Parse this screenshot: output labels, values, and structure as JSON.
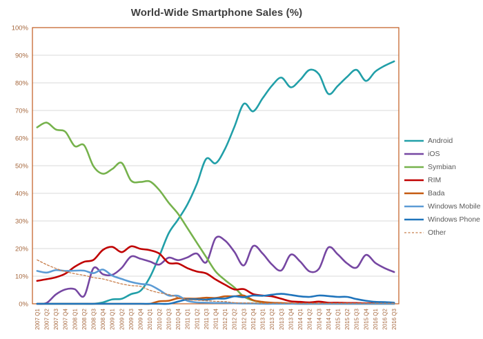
{
  "chart_data": {
    "type": "line",
    "title": "World-Wide Smartphone Sales (%)",
    "smooth": true,
    "grid": "horizontal",
    "legend_position": "right",
    "ylim": [
      0,
      100
    ],
    "y_tick_labels": [
      "0%",
      "10%",
      "20%",
      "30%",
      "40%",
      "50%",
      "60%",
      "70%",
      "80%",
      "90%",
      "100%"
    ],
    "x_categories": [
      "2007 Q1",
      "2007 Q2",
      "2007 Q3",
      "2007 Q4",
      "2008 Q1",
      "2008 Q2",
      "2008 Q3",
      "2008 Q4",
      "2009 Q1",
      "2009 Q2",
      "2009 Q3",
      "2009 Q4",
      "2010 Q1",
      "2010 Q2",
      "2010 Q3",
      "2010 Q4",
      "2011 Q1",
      "2011 Q2",
      "2011 Q3",
      "2011 Q4",
      "2012 Q1",
      "2012 Q2",
      "2012 Q3",
      "2012 Q4",
      "2013 Q1",
      "2013 Q2",
      "2013 Q3",
      "2013 Q4",
      "2014 Q1",
      "2014 Q2",
      "2014 Q3",
      "2014 Q4",
      "2015 Q1",
      "2015 Q2",
      "2015 Q3",
      "2015 Q4",
      "2016 Q1",
      "2016 Q2",
      "2016 Q3"
    ],
    "series": [
      {
        "name": "Android",
        "color": "#219FA8",
        "style": "solid",
        "values": [
          0,
          0,
          0,
          0,
          0,
          0,
          0,
          0.5,
          1.6,
          1.8,
          3.5,
          4.7,
          9.6,
          17.2,
          25.5,
          30.5,
          36.0,
          43.4,
          52.5,
          50.9,
          56.1,
          64.1,
          72.4,
          69.7,
          74.4,
          79.0,
          81.9,
          78.4,
          81.1,
          84.7,
          83.1,
          76.0,
          78.9,
          82.2,
          84.7,
          80.7,
          84.1,
          86.2,
          87.8
        ]
      },
      {
        "name": "iOS",
        "color": "#7647A2",
        "style": "solid",
        "values": [
          0,
          0.3,
          3.4,
          5.2,
          5.3,
          2.8,
          12.9,
          10.7,
          10.5,
          13.0,
          17.1,
          16.3,
          15.3,
          14.2,
          16.7,
          15.8,
          16.8,
          18.2,
          15.0,
          23.8,
          22.9,
          18.8,
          13.9,
          20.9,
          18.2,
          14.2,
          12.1,
          17.8,
          15.3,
          11.7,
          12.7,
          20.4,
          17.9,
          14.6,
          13.1,
          17.7,
          14.8,
          12.9,
          11.5
        ]
      },
      {
        "name": "Symbian",
        "color": "#76B24C",
        "style": "solid",
        "values": [
          63.9,
          65.6,
          63.1,
          62.3,
          57.1,
          57.4,
          49.8,
          47.1,
          48.8,
          51.0,
          44.6,
          44.1,
          44.3,
          41.2,
          36.6,
          32.6,
          27.4,
          22.1,
          16.9,
          11.7,
          8.6,
          5.9,
          2.6,
          1.2,
          0.6,
          0.3,
          0.2,
          0.1,
          0,
          0,
          0,
          0,
          0,
          0,
          0,
          0,
          0,
          0,
          0
        ]
      },
      {
        "name": "RIM",
        "color": "#C00000",
        "style": "solid",
        "values": [
          8.3,
          8.9,
          9.6,
          10.9,
          13.4,
          15.2,
          15.9,
          19.5,
          20.6,
          18.7,
          20.8,
          19.9,
          19.4,
          18.2,
          14.8,
          14.6,
          12.9,
          11.7,
          11.0,
          8.8,
          6.9,
          5.2,
          5.3,
          3.5,
          3.0,
          2.7,
          1.8,
          0.9,
          0.7,
          0.5,
          0.8,
          0.4,
          0.4,
          0.3,
          0.3,
          0.2,
          0.2,
          0.1,
          0.1
        ]
      },
      {
        "name": "Bada",
        "color": "#C55A11",
        "style": "solid",
        "values": [
          0,
          0,
          0,
          0,
          0,
          0,
          0,
          0,
          0,
          0,
          0,
          0,
          0,
          0.9,
          1.1,
          2.0,
          1.9,
          1.9,
          2.2,
          2.1,
          2.7,
          2.7,
          3.0,
          1.3,
          0.7,
          0.4,
          0.3,
          0.1,
          0,
          0,
          0,
          0,
          0,
          0,
          0,
          0,
          0,
          0,
          0
        ]
      },
      {
        "name": "Windows Mobile",
        "color": "#5B9BD5",
        "style": "solid",
        "values": [
          11.9,
          11.3,
          12.2,
          11.9,
          12.0,
          12.0,
          11.1,
          12.4,
          10.2,
          9.0,
          7.9,
          7.2,
          6.8,
          5.0,
          3.0,
          2.9,
          1.1,
          0.5,
          0.4,
          0.3,
          0.3,
          0.2,
          0.1,
          0.1,
          0,
          0,
          0,
          0,
          0,
          0,
          0,
          0,
          0,
          0,
          0,
          0,
          0,
          0,
          0
        ]
      },
      {
        "name": "Windows Phone",
        "color": "#1F74BC",
        "style": "solid",
        "values": [
          0,
          0,
          0,
          0,
          0,
          0,
          0,
          0,
          0,
          0,
          0,
          0,
          0,
          0,
          0,
          0.8,
          1.6,
          1.6,
          1.5,
          1.9,
          1.9,
          2.7,
          2.4,
          3.0,
          2.9,
          3.3,
          3.6,
          3.2,
          2.7,
          2.5,
          3.0,
          2.8,
          2.5,
          2.5,
          1.7,
          1.1,
          0.7,
          0.6,
          0.4
        ]
      },
      {
        "name": "Other",
        "color": "#C87D4A",
        "style": "dashed",
        "values": [
          15.9,
          14.2,
          12.8,
          11.7,
          10.9,
          10.3,
          9.5,
          9.0,
          8.1,
          7.2,
          6.6,
          6.3,
          4.9,
          4.0,
          3.4,
          2.3,
          1.5,
          1.3,
          1.1,
          0.9,
          0.8,
          0.4,
          0.3,
          0.3,
          0.2,
          0.2,
          0.2,
          0.2,
          0.2,
          0.2,
          0.2,
          0.2,
          0.2,
          0.2,
          0.2,
          0.2,
          0.2,
          0.2,
          0.2
        ]
      }
    ]
  },
  "colors": {
    "background": "#FFFFFF",
    "grid": "#D9D9D9",
    "plot_border": "#C0591D",
    "axis_text": "#A5673D",
    "title_text": "#3F3F3F",
    "legend_text": "#595959"
  }
}
